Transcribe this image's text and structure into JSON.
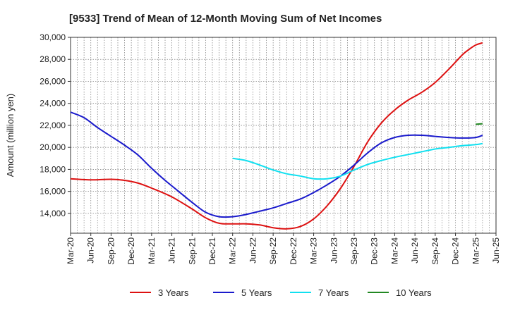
{
  "chart_data": {
    "type": "line",
    "title": "[9533]  Trend of Mean of 12-Month Moving Sum of Net Incomes",
    "xlabel": "",
    "ylabel": "Amount (million yen)",
    "ylim": [
      12200,
      30000
    ],
    "yticks": [
      14000,
      16000,
      18000,
      20000,
      22000,
      24000,
      26000,
      28000,
      30000
    ],
    "ytick_labels": [
      "14,000",
      "16,000",
      "18,000",
      "20,000",
      "22,000",
      "24,000",
      "26,000",
      "28,000",
      "30,000"
    ],
    "x_start": "2020-03",
    "xlim_months": [
      0,
      63
    ],
    "xticks": [
      {
        "m": 0,
        "label": "Mar-20"
      },
      {
        "m": 3,
        "label": "Jun-20"
      },
      {
        "m": 6,
        "label": "Sep-20"
      },
      {
        "m": 9,
        "label": "Dec-20"
      },
      {
        "m": 12,
        "label": "Mar-21"
      },
      {
        "m": 15,
        "label": "Jun-21"
      },
      {
        "m": 18,
        "label": "Sep-21"
      },
      {
        "m": 21,
        "label": "Dec-21"
      },
      {
        "m": 24,
        "label": "Mar-22"
      },
      {
        "m": 27,
        "label": "Jun-22"
      },
      {
        "m": 30,
        "label": "Sep-22"
      },
      {
        "m": 33,
        "label": "Dec-22"
      },
      {
        "m": 36,
        "label": "Mar-23"
      },
      {
        "m": 39,
        "label": "Jun-23"
      },
      {
        "m": 42,
        "label": "Sep-23"
      },
      {
        "m": 45,
        "label": "Dec-23"
      },
      {
        "m": 48,
        "label": "Mar-24"
      },
      {
        "m": 51,
        "label": "Jun-24"
      },
      {
        "m": 54,
        "label": "Sep-24"
      },
      {
        "m": 57,
        "label": "Dec-24"
      },
      {
        "m": 60,
        "label": "Mar-25"
      },
      {
        "m": 63,
        "label": "Jun-25"
      }
    ],
    "grid": true,
    "legend_position": "bottom",
    "series": [
      {
        "name": "3 Years",
        "color": "#dd1111",
        "points": [
          [
            0,
            17150
          ],
          [
            3,
            17050
          ],
          [
            6,
            17100
          ],
          [
            8,
            17000
          ],
          [
            10,
            16750
          ],
          [
            12,
            16300
          ],
          [
            15,
            15500
          ],
          [
            18,
            14400
          ],
          [
            20,
            13600
          ],
          [
            22,
            13100
          ],
          [
            24,
            13050
          ],
          [
            26,
            13050
          ],
          [
            28,
            12950
          ],
          [
            30,
            12700
          ],
          [
            32,
            12600
          ],
          [
            34,
            12800
          ],
          [
            36,
            13500
          ],
          [
            38,
            14700
          ],
          [
            40,
            16300
          ],
          [
            42,
            18300
          ],
          [
            44,
            20500
          ],
          [
            46,
            22200
          ],
          [
            48,
            23400
          ],
          [
            50,
            24300
          ],
          [
            52,
            25000
          ],
          [
            54,
            25900
          ],
          [
            56,
            27100
          ],
          [
            58,
            28400
          ],
          [
            59,
            28900
          ],
          [
            60,
            29300
          ],
          [
            61,
            29500
          ]
        ]
      },
      {
        "name": "5 Years",
        "color": "#1a1acc",
        "points": [
          [
            0,
            23200
          ],
          [
            2,
            22700
          ],
          [
            4,
            21800
          ],
          [
            6,
            21000
          ],
          [
            8,
            20200
          ],
          [
            10,
            19300
          ],
          [
            12,
            18100
          ],
          [
            14,
            17000
          ],
          [
            16,
            16000
          ],
          [
            18,
            15000
          ],
          [
            20,
            14100
          ],
          [
            22,
            13700
          ],
          [
            24,
            13700
          ],
          [
            26,
            13900
          ],
          [
            28,
            14200
          ],
          [
            30,
            14500
          ],
          [
            32,
            14900
          ],
          [
            34,
            15300
          ],
          [
            36,
            15900
          ],
          [
            38,
            16600
          ],
          [
            40,
            17400
          ],
          [
            42,
            18400
          ],
          [
            44,
            19500
          ],
          [
            46,
            20400
          ],
          [
            48,
            20900
          ],
          [
            50,
            21100
          ],
          [
            52,
            21100
          ],
          [
            54,
            21000
          ],
          [
            56,
            20900
          ],
          [
            58,
            20850
          ],
          [
            60,
            20900
          ],
          [
            61,
            21100
          ]
        ]
      },
      {
        "name": "7 Years",
        "color": "#11e0f0",
        "points": [
          [
            24,
            19000
          ],
          [
            26,
            18800
          ],
          [
            28,
            18400
          ],
          [
            30,
            17950
          ],
          [
            32,
            17600
          ],
          [
            34,
            17400
          ],
          [
            36,
            17150
          ],
          [
            38,
            17150
          ],
          [
            40,
            17400
          ],
          [
            42,
            17950
          ],
          [
            44,
            18450
          ],
          [
            46,
            18800
          ],
          [
            48,
            19100
          ],
          [
            50,
            19350
          ],
          [
            52,
            19600
          ],
          [
            54,
            19850
          ],
          [
            56,
            20000
          ],
          [
            58,
            20150
          ],
          [
            60,
            20250
          ],
          [
            61,
            20350
          ]
        ]
      },
      {
        "name": "10 Years",
        "color": "#228822",
        "points": [
          [
            60,
            22100
          ],
          [
            61,
            22150
          ]
        ]
      }
    ]
  }
}
